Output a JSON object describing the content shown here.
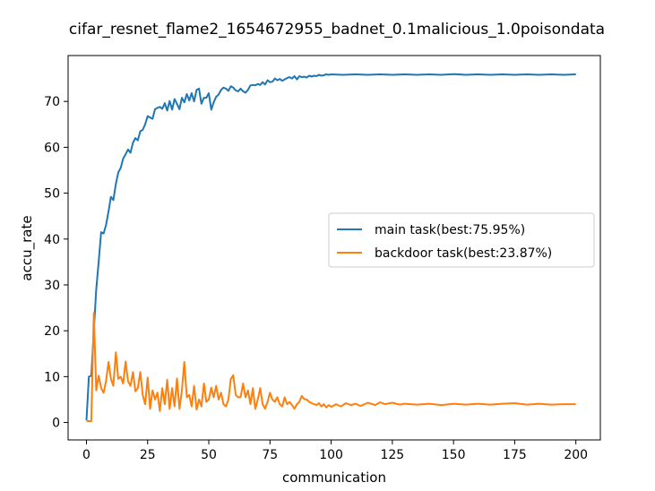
{
  "chart_data": {
    "type": "line",
    "title": "cifar_resnet_flame2_1654672955_badnet_0.1malicious_1.0poisondata",
    "xlabel": "communication",
    "ylabel": "accu_rate",
    "xlim": [
      -7.5,
      210
    ],
    "ylim": [
      -3.8,
      80
    ],
    "xticks": [
      0,
      25,
      50,
      75,
      100,
      125,
      150,
      175,
      200
    ],
    "yticks": [
      0,
      10,
      20,
      30,
      40,
      50,
      60,
      70
    ],
    "grid": false,
    "legend_position": "center-right",
    "colors": {
      "main": "#1f77b4",
      "backdoor": "#ff7f0e"
    },
    "series": [
      {
        "name": "main task(best:75.95%)",
        "color": "#1f77b4",
        "points": [
          [
            0,
            0.5
          ],
          [
            1,
            10
          ],
          [
            2,
            10.2
          ],
          [
            3,
            20
          ],
          [
            4,
            29
          ],
          [
            5,
            35
          ],
          [
            6,
            41.5
          ],
          [
            7,
            41.2
          ],
          [
            8,
            43
          ],
          [
            9,
            46
          ],
          [
            10,
            49.2
          ],
          [
            11,
            48.5
          ],
          [
            12,
            52
          ],
          [
            13,
            54.5
          ],
          [
            14,
            55.5
          ],
          [
            15,
            57.5
          ],
          [
            16,
            58.5
          ],
          [
            17,
            59.5
          ],
          [
            18,
            58.8
          ],
          [
            19,
            61
          ],
          [
            20,
            62
          ],
          [
            21,
            61.5
          ],
          [
            22,
            63.5
          ],
          [
            23,
            63.8
          ],
          [
            24,
            65
          ],
          [
            25,
            66.8
          ],
          [
            26,
            66.5
          ],
          [
            27,
            66.2
          ],
          [
            28,
            68.3
          ],
          [
            29,
            68.6
          ],
          [
            30,
            68.8
          ],
          [
            31,
            68.4
          ],
          [
            32,
            69.6
          ],
          [
            33,
            68
          ],
          [
            34,
            70.1
          ],
          [
            35,
            68.2
          ],
          [
            36,
            70.5
          ],
          [
            37,
            69.5
          ],
          [
            38,
            68.3
          ],
          [
            39,
            70.8
          ],
          [
            40,
            69.8
          ],
          [
            41,
            71.6
          ],
          [
            42,
            70.2
          ],
          [
            43,
            71.8
          ],
          [
            44,
            70
          ],
          [
            45,
            72.5
          ],
          [
            46,
            72.8
          ],
          [
            47,
            69.5
          ],
          [
            48,
            70.8
          ],
          [
            49,
            70.8
          ],
          [
            50,
            71.8
          ],
          [
            51,
            68.2
          ],
          [
            52,
            69.8
          ],
          [
            53,
            71
          ],
          [
            54,
            71.5
          ],
          [
            55,
            72.5
          ],
          [
            56,
            73
          ],
          [
            57,
            72.8
          ],
          [
            58,
            72.3
          ],
          [
            59,
            73.3
          ],
          [
            60,
            73
          ],
          [
            61,
            72.4
          ],
          [
            62,
            72.2
          ],
          [
            63,
            72.8
          ],
          [
            64,
            72.2
          ],
          [
            65,
            71.9
          ],
          [
            66,
            72.5
          ],
          [
            67,
            73.5
          ],
          [
            68,
            73.6
          ],
          [
            69,
            73.5
          ],
          [
            70,
            73.8
          ],
          [
            71,
            73.6
          ],
          [
            72,
            74.2
          ],
          [
            73,
            73.7
          ],
          [
            74,
            74.6
          ],
          [
            75,
            74.2
          ],
          [
            76,
            74.3
          ],
          [
            77,
            75
          ],
          [
            78,
            74.6
          ],
          [
            79,
            74.9
          ],
          [
            80,
            74.5
          ],
          [
            81,
            74.8
          ],
          [
            82,
            75.1
          ],
          [
            83,
            75.3
          ],
          [
            84,
            75
          ],
          [
            85,
            75.5
          ],
          [
            86,
            74.8
          ],
          [
            87,
            75.5
          ],
          [
            88,
            75.3
          ],
          [
            89,
            75.4
          ],
          [
            90,
            75.2
          ],
          [
            91,
            75.6
          ],
          [
            92,
            75.4
          ],
          [
            93,
            75.6
          ],
          [
            94,
            75.5
          ],
          [
            95,
            75.8
          ],
          [
            96,
            75.6
          ],
          [
            97,
            75.7
          ],
          [
            98,
            75.9
          ],
          [
            99,
            75.8
          ],
          [
            100,
            75.9
          ],
          [
            105,
            75.8
          ],
          [
            110,
            75.9
          ],
          [
            115,
            75.8
          ],
          [
            120,
            75.9
          ],
          [
            125,
            75.8
          ],
          [
            130,
            75.9
          ],
          [
            135,
            75.8
          ],
          [
            140,
            75.9
          ],
          [
            145,
            75.8
          ],
          [
            150,
            75.95
          ],
          [
            155,
            75.8
          ],
          [
            160,
            75.9
          ],
          [
            165,
            75.8
          ],
          [
            170,
            75.9
          ],
          [
            175,
            75.8
          ],
          [
            180,
            75.9
          ],
          [
            185,
            75.8
          ],
          [
            190,
            75.9
          ],
          [
            195,
            75.8
          ],
          [
            200,
            75.9
          ]
        ]
      },
      {
        "name": "backdoor task(best:23.87%)",
        "color": "#ff7f0e",
        "points": [
          [
            0,
            0.3
          ],
          [
            1,
            0.3
          ],
          [
            2,
            0.3
          ],
          [
            3,
            23.87
          ],
          [
            4,
            7
          ],
          [
            5,
            10.2
          ],
          [
            6,
            7.5
          ],
          [
            7,
            6.5
          ],
          [
            8,
            9
          ],
          [
            9,
            13.2
          ],
          [
            10,
            9.5
          ],
          [
            11,
            8
          ],
          [
            12,
            15.3
          ],
          [
            13,
            9.5
          ],
          [
            14,
            10
          ],
          [
            15,
            8.5
          ],
          [
            16,
            13.3
          ],
          [
            17,
            9
          ],
          [
            18,
            8
          ],
          [
            19,
            11
          ],
          [
            20,
            6.8
          ],
          [
            21,
            7.5
          ],
          [
            22,
            11
          ],
          [
            23,
            6
          ],
          [
            24,
            4
          ],
          [
            25,
            9.8
          ],
          [
            26,
            3
          ],
          [
            27,
            7
          ],
          [
            28,
            5
          ],
          [
            29,
            6.5
          ],
          [
            30,
            2.5
          ],
          [
            31,
            7.5
          ],
          [
            32,
            4
          ],
          [
            33,
            9.3
          ],
          [
            34,
            3
          ],
          [
            35,
            7.5
          ],
          [
            36,
            3.5
          ],
          [
            37,
            9.6
          ],
          [
            38,
            3
          ],
          [
            39,
            7
          ],
          [
            40,
            13.2
          ],
          [
            41,
            5.5
          ],
          [
            42,
            6
          ],
          [
            43,
            3.5
          ],
          [
            44,
            8
          ],
          [
            45,
            2.8
          ],
          [
            46,
            5
          ],
          [
            47,
            3.5
          ],
          [
            48,
            8.5
          ],
          [
            49,
            4.5
          ],
          [
            50,
            5
          ],
          [
            51,
            7.6
          ],
          [
            52,
            5.5
          ],
          [
            53,
            8
          ],
          [
            54,
            5
          ],
          [
            55,
            6.5
          ],
          [
            56,
            4
          ],
          [
            57,
            3.5
          ],
          [
            58,
            5
          ],
          [
            59,
            9.5
          ],
          [
            60,
            10.3
          ],
          [
            61,
            6
          ],
          [
            62,
            5.5
          ],
          [
            63,
            5.5
          ],
          [
            64,
            8.5
          ],
          [
            65,
            5.5
          ],
          [
            66,
            7
          ],
          [
            67,
            4
          ],
          [
            68,
            7.5
          ],
          [
            69,
            3
          ],
          [
            70,
            5
          ],
          [
            71,
            7.5
          ],
          [
            72,
            4
          ],
          [
            73,
            3
          ],
          [
            74,
            4.5
          ],
          [
            75,
            6.5
          ],
          [
            76,
            5
          ],
          [
            77,
            4.5
          ],
          [
            78,
            5.5
          ],
          [
            79,
            4
          ],
          [
            80,
            3.5
          ],
          [
            81,
            5.5
          ],
          [
            82,
            4
          ],
          [
            83,
            4.5
          ],
          [
            84,
            3.8
          ],
          [
            85,
            3
          ],
          [
            86,
            4
          ],
          [
            87,
            4.5
          ],
          [
            88,
            5.8
          ],
          [
            89,
            5.1
          ],
          [
            90,
            5
          ],
          [
            91,
            4.5
          ],
          [
            92,
            4.2
          ],
          [
            93,
            4
          ],
          [
            94,
            3.8
          ],
          [
            95,
            4.2
          ],
          [
            96,
            3.5
          ],
          [
            97,
            4
          ],
          [
            98,
            3.3
          ],
          [
            99,
            3.8
          ],
          [
            100,
            3.4
          ],
          [
            102,
            4
          ],
          [
            104,
            3.5
          ],
          [
            106,
            4.2
          ],
          [
            108,
            3.8
          ],
          [
            110,
            4.1
          ],
          [
            112,
            3.6
          ],
          [
            115,
            4.3
          ],
          [
            118,
            3.8
          ],
          [
            120,
            4.4
          ],
          [
            122,
            4
          ],
          [
            125,
            4.3
          ],
          [
            128,
            3.9
          ],
          [
            130,
            4.1
          ],
          [
            135,
            3.9
          ],
          [
            140,
            4.1
          ],
          [
            145,
            3.8
          ],
          [
            150,
            4.1
          ],
          [
            155,
            3.9
          ],
          [
            160,
            4.1
          ],
          [
            165,
            3.9
          ],
          [
            170,
            4.1
          ],
          [
            175,
            4.2
          ],
          [
            180,
            3.9
          ],
          [
            185,
            4.1
          ],
          [
            190,
            3.9
          ],
          [
            195,
            4
          ],
          [
            200,
            4
          ]
        ]
      }
    ]
  }
}
